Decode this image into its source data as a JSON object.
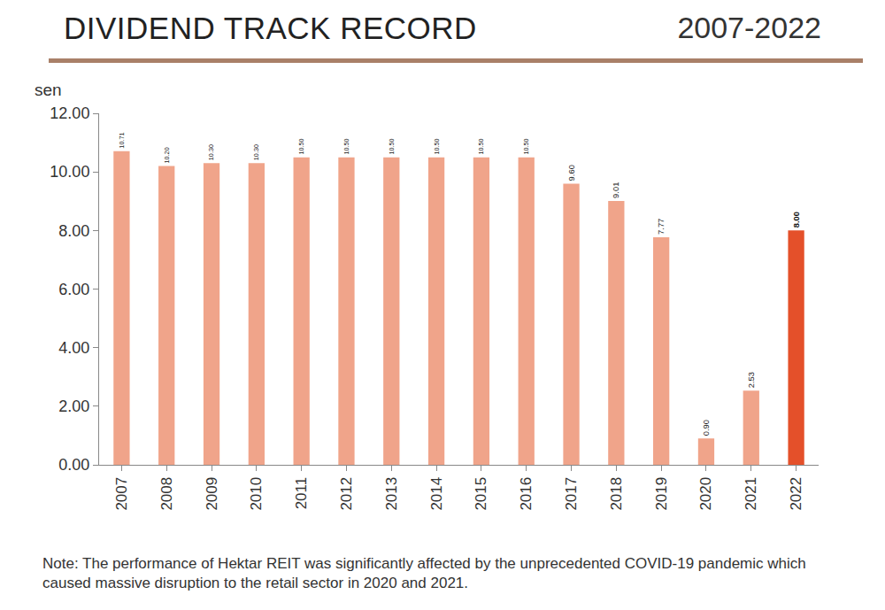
{
  "chart_data": {
    "type": "bar",
    "title": "DIVIDEND TRACK RECORD",
    "subtitle": "2007-2022",
    "ylabel": "sen",
    "annotations": [
      "Note: The performance of Hektar REIT was significantly affected by the unprecedented COVID-19 pandemic which caused massive disruption to the retail sector in 2020 and 2021."
    ],
    "categories": [
      "2007",
      "2008",
      "2009",
      "2010",
      "2011",
      "2012",
      "2013",
      "2014",
      "2015",
      "2016",
      "2017",
      "2018",
      "2019",
      "2020",
      "2021",
      "2022"
    ],
    "values": [
      10.71,
      10.2,
      10.3,
      10.3,
      10.5,
      10.5,
      10.5,
      10.5,
      10.5,
      10.5,
      9.6,
      9.01,
      7.77,
      0.9,
      2.53,
      8.0
    ],
    "value_labels": [
      "10.71",
      "10.20",
      "10.30",
      "10.30",
      "10.50",
      "10.50",
      "10.50",
      "10.50",
      "10.50",
      "10.50",
      "9.60",
      "9.01",
      "7.77",
      "0.90",
      "2.53",
      "8.00"
    ],
    "colors": [
      "#f0a48a",
      "#f0a48a",
      "#f0a48a",
      "#f0a48a",
      "#f0a48a",
      "#f0a48a",
      "#f0a48a",
      "#f0a48a",
      "#f0a48a",
      "#f0a48a",
      "#f0a48a",
      "#f0a48a",
      "#f0a48a",
      "#f0a48a",
      "#f0a48a",
      "#e4502a"
    ],
    "ylim": [
      0,
      12
    ],
    "yticks": [
      {
        "value": 0,
        "label": "0.00"
      },
      {
        "value": 2,
        "label": "2.00"
      },
      {
        "value": 4,
        "label": "4.00"
      },
      {
        "value": 6,
        "label": "6.00"
      },
      {
        "value": 8,
        "label": "8.00"
      },
      {
        "value": 10,
        "label": "10.00"
      },
      {
        "value": 12,
        "label": "12.00"
      }
    ],
    "grid": false,
    "data_labels": true
  }
}
